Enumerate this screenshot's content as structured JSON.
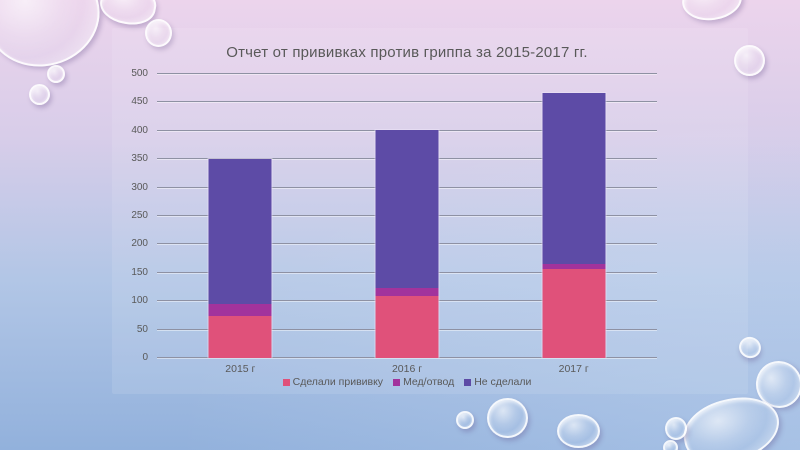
{
  "slide": {
    "background": {
      "top": "#ecd4ec",
      "upper_mid": "#d8cde9",
      "lower_mid": "#b2c6e6",
      "bottom": "#92b1dc"
    }
  },
  "chart_data": {
    "type": "bar",
    "stacked": true,
    "title": "Отчет от прививках против гриппа за 2015-2017 гг.",
    "categories": [
      "2015 г",
      "2016 г",
      "2017 г"
    ],
    "series": [
      {
        "name": "Сделали прививку",
        "color": "#e0517a",
        "values": [
          75,
          110,
          157
        ]
      },
      {
        "name": "Мед/отвод",
        "color": "#a2339c",
        "values": [
          20,
          13,
          9
        ]
      },
      {
        "name": "Не сделали",
        "color": "#5d4ba6",
        "values": [
          258,
          280,
          303
        ]
      }
    ],
    "ylim": [
      0,
      500
    ],
    "yticks": [
      "0",
      "50",
      "100",
      "150",
      "200",
      "250",
      "300",
      "350",
      "400",
      "450",
      "500"
    ],
    "grid": true,
    "legend_position": "bottom",
    "title_color": "#595959",
    "axis_label_color": "#595959",
    "gridline_color": "#8e91a3"
  }
}
